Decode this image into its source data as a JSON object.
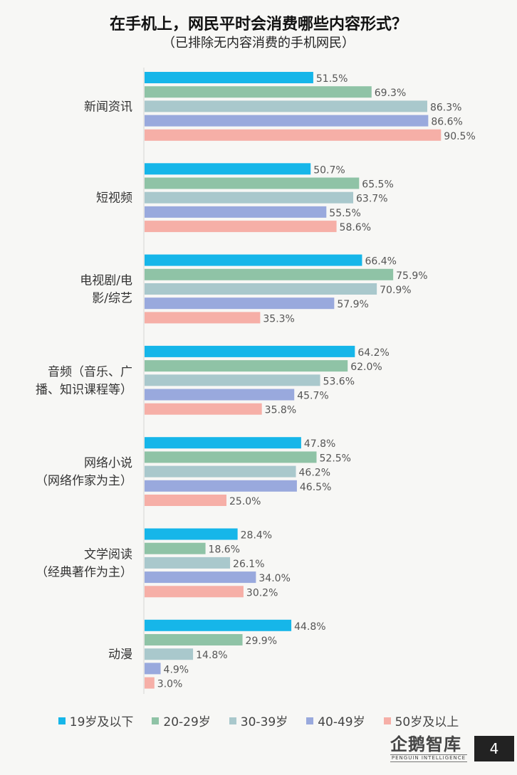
{
  "header": {
    "title": "在手机上，网民平时会消费哪些内容形式？",
    "subtitle": "（已排除无内容消费的手机网民）"
  },
  "chart_data": {
    "type": "bar",
    "orientation": "horizontal",
    "categories": [
      [
        "新闻资讯"
      ],
      [
        "短视频"
      ],
      [
        "电视剧/电",
        "影/综艺"
      ],
      [
        "音频（音乐、广",
        "播、知识课程等）"
      ],
      [
        "网络小说",
        "（网络作家为主）"
      ],
      [
        "文学阅读",
        "（经典著作为主）"
      ],
      [
        "动漫"
      ]
    ],
    "series": [
      {
        "name": "19岁及以下",
        "color": "#16b6e9",
        "values": [
          51.5,
          50.7,
          66.4,
          64.2,
          47.8,
          28.4,
          44.8
        ]
      },
      {
        "name": "20-29岁",
        "color": "#8fc3a6",
        "values": [
          69.3,
          65.5,
          75.9,
          62.0,
          52.5,
          18.6,
          29.9
        ]
      },
      {
        "name": "30-39岁",
        "color": "#a9c8cc",
        "values": [
          86.3,
          63.7,
          70.9,
          53.6,
          46.2,
          26.1,
          14.8
        ]
      },
      {
        "name": "40-49岁",
        "color": "#99a9dd",
        "values": [
          86.6,
          55.5,
          57.9,
          45.7,
          46.5,
          34.0,
          4.9
        ]
      },
      {
        "name": "50岁及以上",
        "color": "#f6afa7",
        "values": [
          90.5,
          58.6,
          35.3,
          35.8,
          25.0,
          30.2,
          3.0
        ]
      }
    ],
    "value_suffix": "%",
    "xlim": [
      0,
      100
    ],
    "grid": false,
    "legend_position": "bottom"
  },
  "footer": {
    "logo_text": "企鹅智库",
    "logo_subtext": "PENGUIN INTELLIGENCE",
    "page_number": "4"
  }
}
